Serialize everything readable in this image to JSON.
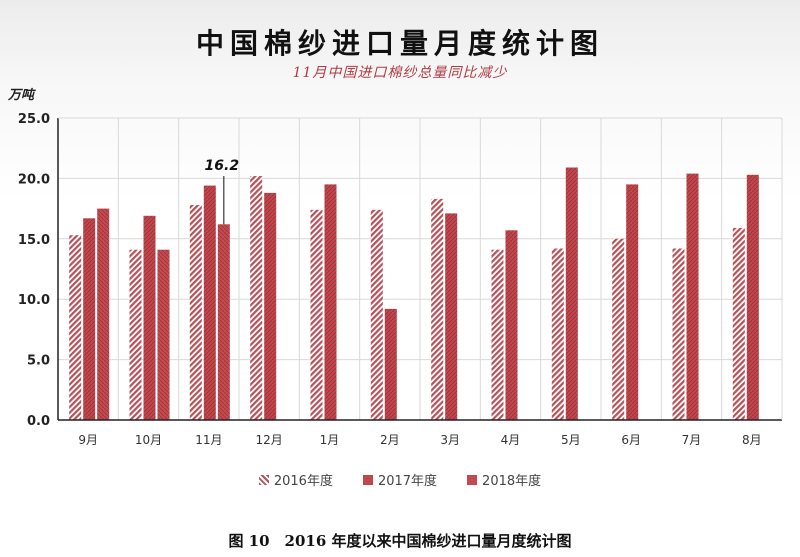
{
  "chart_data": {
    "type": "bar",
    "title": "中国棉纱进口量月度统计图",
    "subtitle": "11月中国进口棉纱总量同比减少",
    "ylabel": "万吨",
    "xlabel": "",
    "ylim": [
      0,
      25
    ],
    "yticks": [
      "0.0",
      "5.0",
      "10.0",
      "15.0",
      "20.0",
      "25.0"
    ],
    "grid": true,
    "legend_position": "bottom",
    "categories": [
      "9月",
      "10月",
      "11月",
      "12月",
      "1月",
      "2月",
      "3月",
      "4月",
      "5月",
      "6月",
      "7月",
      "8月"
    ],
    "series": [
      {
        "name": "2016年度",
        "values": [
          15.3,
          14.1,
          17.8,
          20.2,
          17.4,
          17.4,
          18.3,
          14.1,
          14.2,
          15.0,
          14.2,
          15.9
        ]
      },
      {
        "name": "2017年度",
        "values": [
          16.7,
          16.9,
          19.4,
          18.8,
          19.5,
          9.2,
          17.1,
          15.7,
          20.9,
          19.5,
          20.4,
          20.3
        ]
      },
      {
        "name": "2018年度",
        "values": [
          17.5,
          14.1,
          16.2,
          null,
          null,
          null,
          null,
          null,
          null,
          null,
          null,
          null
        ]
      }
    ],
    "annotations": [
      {
        "category": "11月",
        "series": "2018年度",
        "text": "16.2"
      }
    ]
  },
  "colors": {
    "series_2016": "#b85057",
    "series_2017": "#c0464d",
    "series_2018": "#c24a50",
    "axis": "#222222",
    "grid": "#d9d9d9"
  },
  "caption": "图 10　2016 年度以来中国棉纱进口量月度统计图"
}
